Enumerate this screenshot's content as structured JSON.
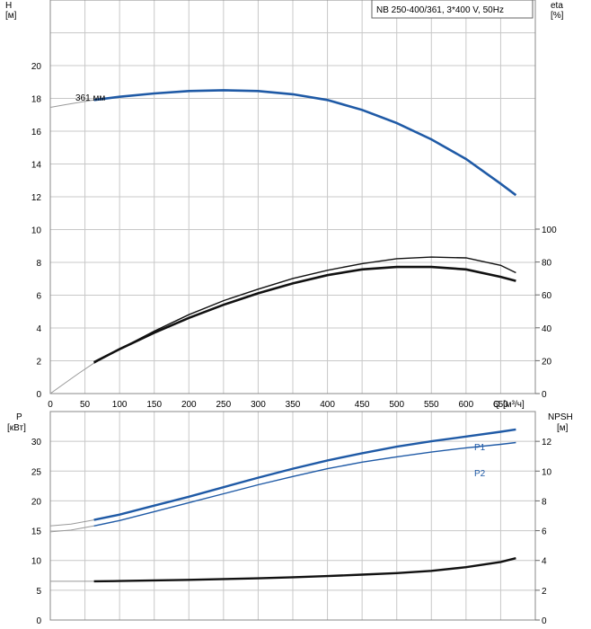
{
  "chart_data": [
    {
      "type": "line",
      "panel": "top",
      "legend_box": "NB 250-400/361, 3*400 V, 50Hz",
      "left_axis": {
        "name": "H",
        "unit": "[м]",
        "ticks": [
          0,
          2,
          4,
          6,
          8,
          10,
          12,
          14,
          16,
          18,
          20
        ],
        "range": [
          0,
          24
        ]
      },
      "right_axis": {
        "name": "eta",
        "unit": "[%]",
        "ticks": [
          0,
          20,
          40,
          60,
          80,
          100
        ],
        "range": [
          0,
          100
        ]
      },
      "x_axis": {
        "name": "Q",
        "unit": "[м³/ч]",
        "ticks": [
          0,
          50,
          100,
          150,
          200,
          250,
          300,
          350,
          400,
          450,
          500,
          550,
          600,
          650
        ],
        "range": [
          0,
          700
        ]
      },
      "grid": true,
      "series": [
        {
          "name": "361 мм",
          "role": "head",
          "axis": "left",
          "color": "#1f5aa6",
          "faded_x": [
            0,
            20,
            40,
            63
          ],
          "faded_y": [
            17.45,
            17.6,
            17.75,
            17.9
          ],
          "x": [
            63,
            100,
            150,
            200,
            250,
            300,
            350,
            400,
            450,
            500,
            550,
            600,
            650,
            672
          ],
          "y": [
            17.9,
            18.1,
            18.3,
            18.45,
            18.5,
            18.45,
            18.25,
            17.9,
            17.3,
            16.5,
            15.5,
            14.3,
            12.8,
            12.1
          ]
        },
        {
          "name": "",
          "role": "eta",
          "axis": "right",
          "color": "#111111",
          "x": [
            63,
            100,
            150,
            200,
            250,
            300,
            350,
            400,
            450,
            500,
            550,
            600,
            650,
            672
          ],
          "y": [
            19,
            27,
            37,
            46,
            54,
            61,
            67,
            72,
            75.5,
            77,
            77,
            75.5,
            71,
            68.5
          ]
        },
        {
          "name": "",
          "role": "eta",
          "axis": "right",
          "color": "#111111",
          "faded_x": [
            0,
            20,
            40,
            63
          ],
          "faded_y": [
            0,
            6,
            12,
            18.5
          ],
          "x": [
            63,
            100,
            150,
            200,
            250,
            300,
            350,
            400,
            450,
            500,
            550,
            600,
            650,
            672
          ],
          "y": [
            18.5,
            27,
            38,
            48,
            56.5,
            63.5,
            70,
            75,
            79,
            82,
            83,
            82.5,
            78,
            73.5
          ]
        }
      ]
    },
    {
      "type": "line",
      "panel": "bottom",
      "left_axis": {
        "name": "P",
        "unit": "[кВт]",
        "ticks": [
          0,
          5,
          10,
          15,
          20,
          25,
          30
        ],
        "range": [
          0,
          35
        ]
      },
      "right_axis": {
        "name": "NPSH",
        "unit": "[м]",
        "ticks": [
          0,
          2,
          4,
          6,
          8,
          10,
          12
        ],
        "range": [
          0,
          14
        ]
      },
      "x_axis": {
        "name": "Q",
        "unit": "[м³/ч]",
        "range": [
          0,
          700
        ]
      },
      "grid": true,
      "series": [
        {
          "name": "P1",
          "axis": "left",
          "color": "#1f5aa6",
          "faded_x": [
            0,
            30,
            63
          ],
          "faded_y": [
            15.8,
            16.1,
            16.8
          ],
          "x": [
            63,
            100,
            150,
            200,
            250,
            300,
            350,
            400,
            450,
            500,
            550,
            600,
            650,
            672
          ],
          "y": [
            16.8,
            17.7,
            19.2,
            20.7,
            22.3,
            23.9,
            25.4,
            26.8,
            28.0,
            29.1,
            30.0,
            30.8,
            31.6,
            32.0
          ]
        },
        {
          "name": "P2",
          "axis": "left",
          "color": "#1f5aa6",
          "faded_x": [
            0,
            30,
            63
          ],
          "faded_y": [
            14.8,
            15.1,
            15.8
          ],
          "x": [
            63,
            100,
            150,
            200,
            250,
            300,
            350,
            400,
            450,
            500,
            550,
            600,
            650,
            672
          ],
          "y": [
            15.8,
            16.7,
            18.2,
            19.7,
            21.2,
            22.7,
            24.1,
            25.4,
            26.5,
            27.4,
            28.2,
            28.9,
            29.5,
            29.8
          ]
        },
        {
          "name": "",
          "role": "npsh",
          "axis": "right",
          "color": "#111111",
          "faded_x": [
            0,
            30,
            63
          ],
          "faded_y": [
            2.6,
            2.6,
            2.6
          ],
          "x": [
            63,
            100,
            150,
            200,
            250,
            300,
            350,
            400,
            450,
            500,
            550,
            600,
            650,
            672
          ],
          "y": [
            2.6,
            2.62,
            2.66,
            2.7,
            2.75,
            2.8,
            2.87,
            2.95,
            3.05,
            3.15,
            3.3,
            3.55,
            3.9,
            4.15
          ]
        }
      ]
    }
  ]
}
